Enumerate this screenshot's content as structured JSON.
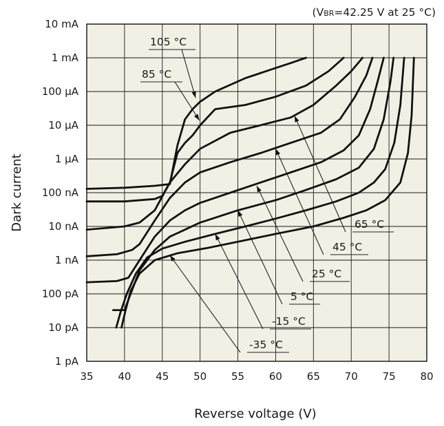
{
  "chart_data": {
    "type": "line",
    "annotation": "(VBR=42.25 V at 25 °C)",
    "annotation_parts": {
      "before": "(V",
      "sub": "BR",
      "after": "=42.25 V at 25 °C)"
    },
    "xlabel": "Reverse voltage (V)",
    "ylabel": "Dark current",
    "xlim": [
      35,
      80
    ],
    "x_ticks": [
      35,
      40,
      45,
      50,
      55,
      60,
      65,
      70,
      75,
      80
    ],
    "y_scale": "log",
    "ylim_amperes": [
      1e-12,
      0.01
    ],
    "y_ticks": [
      {
        "label": "10 mA",
        "value": 0.01
      },
      {
        "label": "1 mA",
        "value": 0.001
      },
      {
        "label": "100 µA",
        "value": 0.0001
      },
      {
        "label": "10 µA",
        "value": 1e-05
      },
      {
        "label": "1 µA",
        "value": 1e-06
      },
      {
        "label": "100 nA",
        "value": 1e-07
      },
      {
        "label": "10 nA",
        "value": 1e-08
      },
      {
        "label": "1 nA",
        "value": 1e-09
      },
      {
        "label": "100 pA",
        "value": 1e-10
      },
      {
        "label": "10 pA",
        "value": 1e-11
      },
      {
        "label": "1 pA",
        "value": 1e-12
      }
    ],
    "grid": true,
    "background": "#f2efe4",
    "series": [
      {
        "name": "105 °C",
        "points": [
          [
            35,
            1.3e-07
          ],
          [
            40,
            1.4e-07
          ],
          [
            44,
            1.6e-07
          ],
          [
            46,
            1.8e-07
          ],
          [
            47,
            2.5e-06
          ],
          [
            48,
            1.5e-05
          ],
          [
            49,
            3e-05
          ],
          [
            50,
            5e-05
          ],
          [
            52,
            0.0001
          ],
          [
            56,
            0.00025
          ],
          [
            60,
            0.0005
          ],
          [
            62,
            0.0007
          ],
          [
            64,
            0.001
          ]
        ]
      },
      {
        "name": "85 °C",
        "points": [
          [
            35,
            5.5e-08
          ],
          [
            40,
            5.5e-08
          ],
          [
            44,
            6.5e-08
          ],
          [
            45,
            8e-08
          ],
          [
            46,
            2e-07
          ],
          [
            47,
            1.5e-06
          ],
          [
            48,
            3e-06
          ],
          [
            49,
            5e-06
          ],
          [
            50,
            1e-05
          ],
          [
            52,
            3e-05
          ],
          [
            56,
            4e-05
          ],
          [
            60,
            7e-05
          ],
          [
            64,
            0.00015
          ],
          [
            67,
            0.0004
          ],
          [
            69,
            0.001
          ]
        ]
      },
      {
        "name": "65 °C",
        "points": [
          [
            35,
            8e-09
          ],
          [
            40,
            1e-08
          ],
          [
            42,
            1.3e-08
          ],
          [
            44,
            3e-08
          ],
          [
            46,
            2e-07
          ],
          [
            48,
            7e-07
          ],
          [
            50,
            2e-06
          ],
          [
            54,
            6e-06
          ],
          [
            58,
            1e-05
          ],
          [
            62,
            1.7e-05
          ],
          [
            65,
            4e-05
          ],
          [
            68,
            0.00015
          ],
          [
            70,
            0.0004
          ],
          [
            71.5,
            0.001
          ]
        ]
      },
      {
        "name": "45 °C",
        "points": [
          [
            35,
            1.3e-09
          ],
          [
            39,
            1.5e-09
          ],
          [
            41,
            2e-09
          ],
          [
            42,
            3e-09
          ],
          [
            44,
            1.5e-08
          ],
          [
            46,
            7e-08
          ],
          [
            48,
            2e-07
          ],
          [
            50,
            4e-07
          ],
          [
            54,
            8e-07
          ],
          [
            58,
            1.5e-06
          ],
          [
            62,
            3e-06
          ],
          [
            66,
            6e-06
          ],
          [
            68.5,
            1.5e-05
          ],
          [
            70.5,
            7e-05
          ],
          [
            72,
            0.0003
          ],
          [
            72.8,
            0.001
          ]
        ]
      },
      {
        "name": "25 °C",
        "points": [
          [
            35,
            2.2e-10
          ],
          [
            39,
            2.4e-10
          ],
          [
            40.5,
            3e-10
          ],
          [
            42,
            1e-09
          ],
          [
            44,
            5e-09
          ],
          [
            46,
            1.5e-08
          ],
          [
            48,
            3e-08
          ],
          [
            50,
            5e-08
          ],
          [
            54,
            1e-07
          ],
          [
            58,
            2e-07
          ],
          [
            62,
            4e-07
          ],
          [
            66,
            8e-07
          ],
          [
            69,
            1.8e-06
          ],
          [
            71,
            5e-06
          ],
          [
            72.5,
            3e-05
          ],
          [
            73.5,
            0.0002
          ],
          [
            74.3,
            0.001
          ]
        ]
      },
      {
        "name": "5 °C",
        "points": [
          [
            38.5,
            3.3e-11
          ],
          [
            40,
            3.3e-11
          ],
          [
            41,
            1.3e-10
          ],
          [
            42,
            5e-10
          ],
          [
            44,
            2e-09
          ],
          [
            46,
            5e-09
          ],
          [
            48,
            8e-09
          ],
          [
            50,
            1.3e-08
          ],
          [
            55,
            3e-08
          ],
          [
            60,
            6e-08
          ],
          [
            64,
            1.2e-07
          ],
          [
            68,
            2.5e-07
          ],
          [
            71,
            5.5e-07
          ],
          [
            73,
            2e-06
          ],
          [
            74.3,
            1.5e-05
          ],
          [
            75.2,
            0.0002
          ],
          [
            75.6,
            0.001
          ]
        ]
      },
      {
        "name": "-15 °C",
        "points": [
          [
            38.9,
            1e-11
          ],
          [
            39.5,
            3e-11
          ],
          [
            40.3,
            1e-10
          ],
          [
            41.5,
            4e-10
          ],
          [
            43,
            1.2e-09
          ],
          [
            45,
            2.2e-09
          ],
          [
            48,
            3.5e-09
          ],
          [
            52,
            6e-09
          ],
          [
            56,
            1e-08
          ],
          [
            60,
            1.7e-08
          ],
          [
            64,
            3e-08
          ],
          [
            68,
            5.5e-08
          ],
          [
            71,
            1e-07
          ],
          [
            73,
            2e-07
          ],
          [
            74.5,
            5e-07
          ],
          [
            75.7,
            3e-06
          ],
          [
            76.5,
            4e-05
          ],
          [
            77,
            0.001
          ]
        ]
      },
      {
        "name": "-35 °C",
        "points": [
          [
            39.6,
            1e-11
          ],
          [
            40.1,
            3e-11
          ],
          [
            40.8,
            1.2e-10
          ],
          [
            42,
            4e-10
          ],
          [
            44,
            1e-09
          ],
          [
            47,
            1.6e-09
          ],
          [
            51,
            2.3e-09
          ],
          [
            55,
            3.5e-09
          ],
          [
            60,
            6e-09
          ],
          [
            65,
            1e-08
          ],
          [
            69,
            1.8e-08
          ],
          [
            72,
            3e-08
          ],
          [
            74.5,
            6e-08
          ],
          [
            76.5,
            2e-07
          ],
          [
            77.5,
            1.5e-06
          ],
          [
            78,
            2e-05
          ],
          [
            78.3,
            0.001
          ]
        ]
      }
    ],
    "labels": [
      {
        "text": "105 °C",
        "anchor": [
          49.4,
          6.5e-05
        ]
      },
      {
        "text": "85 °C",
        "anchor": [
          49.9,
          1.4e-05
        ]
      },
      {
        "text": "65 °C",
        "anchor": [
          62.5,
          1.9e-05
        ]
      },
      {
        "text": "45 °C",
        "anchor": [
          60,
          2e-06
        ]
      },
      {
        "text": "25 °C",
        "anchor": [
          57.5,
          1.6e-07
        ]
      },
      {
        "text": "5 °C",
        "anchor": [
          55,
          3e-08
        ]
      },
      {
        "text": "-15 °C",
        "anchor": [
          52,
          6e-09
        ]
      },
      {
        "text": "-35 °C",
        "anchor": [
          46,
          1.4e-09
        ]
      }
    ]
  }
}
